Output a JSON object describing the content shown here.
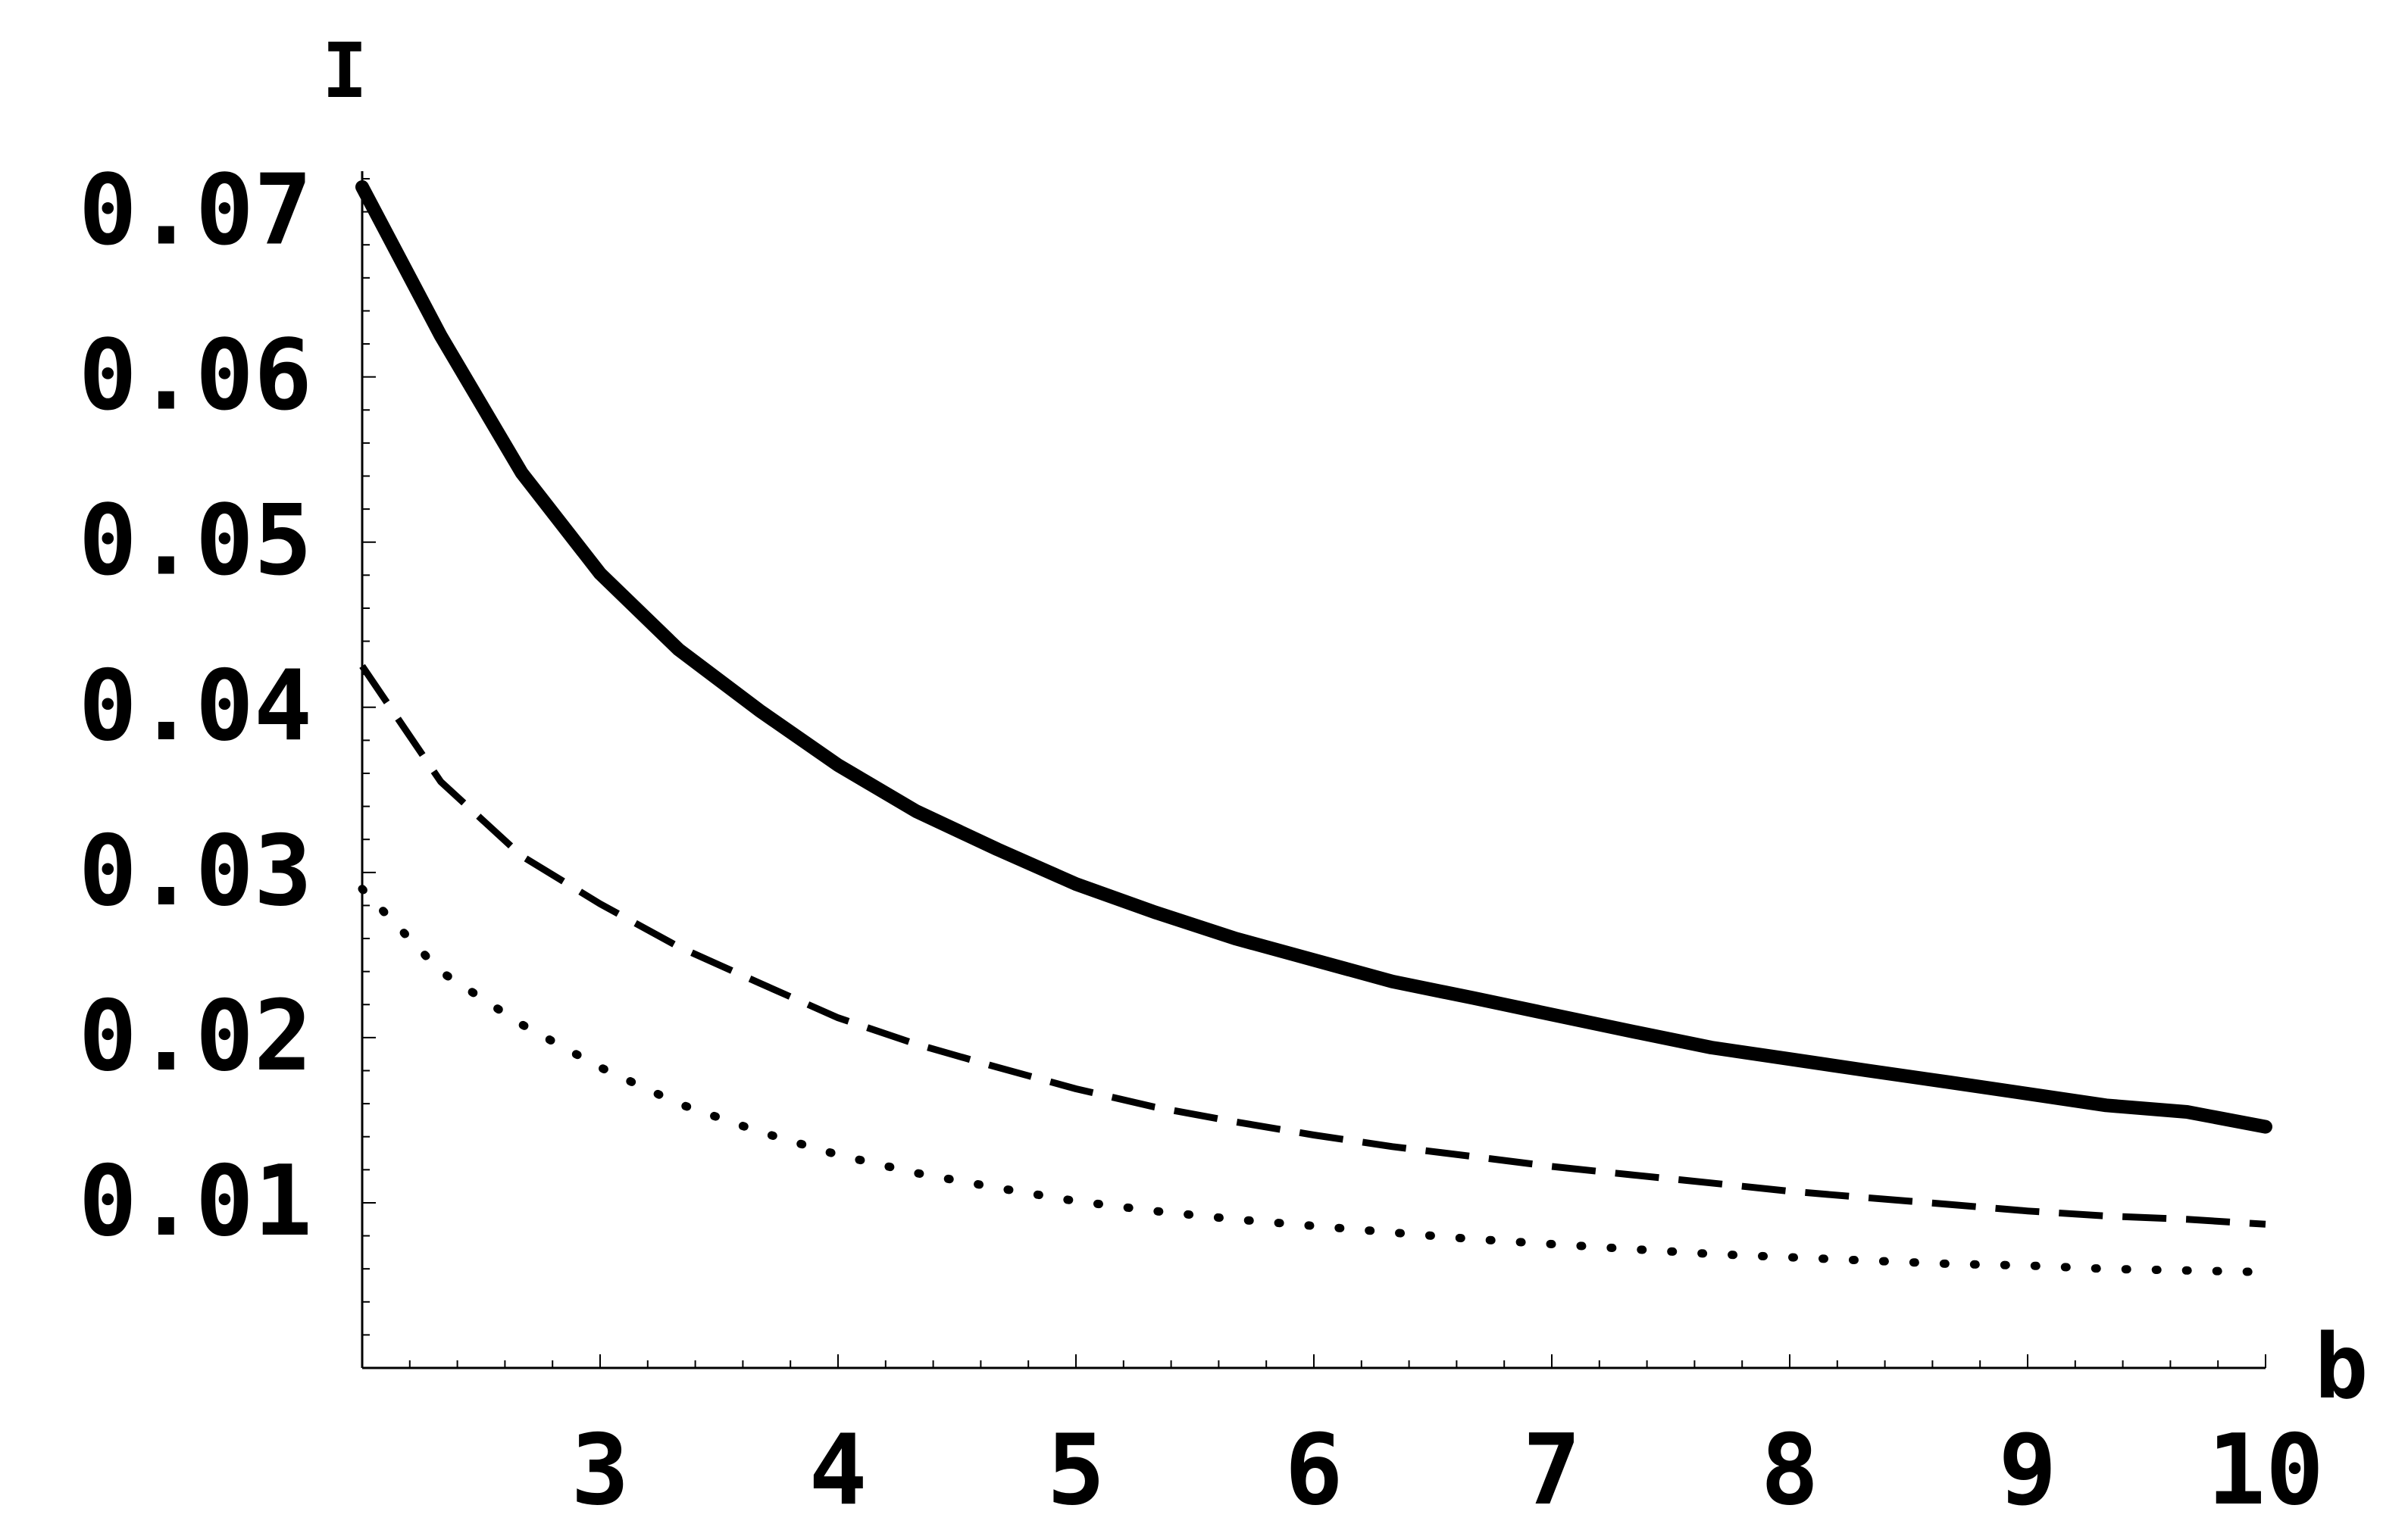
{
  "chart_data": {
    "type": "line",
    "title": "",
    "xlabel": "b",
    "ylabel": "I",
    "xlim": [
      2,
      10
    ],
    "ylim": [
      0,
      0.072
    ],
    "x_ticks": [
      3,
      4,
      5,
      6,
      7,
      8,
      9,
      10
    ],
    "y_ticks": [
      0.01,
      0.02,
      0.03,
      0.04,
      0.05,
      0.06,
      0.07
    ],
    "x_tick_labels": [
      "3",
      "4",
      "5",
      "6",
      "7",
      "8",
      "9",
      "10"
    ],
    "y_tick_labels": [
      "0.01",
      "0.02",
      "0.03",
      "0.04",
      "0.05",
      "0.06",
      "0.07"
    ],
    "grid": false,
    "legend": "none",
    "x": [
      2.0,
      2.33,
      2.67,
      3.0,
      3.33,
      3.67,
      4.0,
      4.33,
      4.67,
      5.0,
      5.33,
      5.67,
      6.0,
      6.33,
      6.67,
      7.0,
      7.33,
      7.67,
      8.0,
      8.33,
      8.67,
      9.0,
      9.33,
      9.67,
      10.0
    ],
    "series": [
      {
        "style": "solid",
        "values": [
          0.0715,
          0.0625,
          0.0542,
          0.0481,
          0.0435,
          0.0398,
          0.0365,
          0.0337,
          0.0314,
          0.0293,
          0.0276,
          0.026,
          0.0247,
          0.0234,
          0.0224,
          0.0214,
          0.0204,
          0.0194,
          0.0187,
          0.018,
          0.0173,
          0.0166,
          0.0159,
          0.0155,
          0.0146
        ]
      },
      {
        "style": "dashed",
        "values": [
          0.0425,
          0.0355,
          0.031,
          0.0281,
          0.0255,
          0.0233,
          0.0212,
          0.0196,
          0.0182,
          0.0169,
          0.0158,
          0.0149,
          0.0141,
          0.0134,
          0.0128,
          0.0122,
          0.0117,
          0.0112,
          0.0107,
          0.0103,
          0.0099,
          0.0095,
          0.0092,
          0.009,
          0.0087
        ]
      },
      {
        "style": "dotted",
        "values": [
          0.029,
          0.024,
          0.0208,
          0.0182,
          0.016,
          0.0143,
          0.0129,
          0.0118,
          0.0109,
          0.0101,
          0.0095,
          0.009,
          0.0086,
          0.0082,
          0.0078,
          0.0075,
          0.0072,
          0.0069,
          0.0067,
          0.0065,
          0.0063,
          0.0062,
          0.006,
          0.0059,
          0.0058
        ]
      }
    ]
  }
}
